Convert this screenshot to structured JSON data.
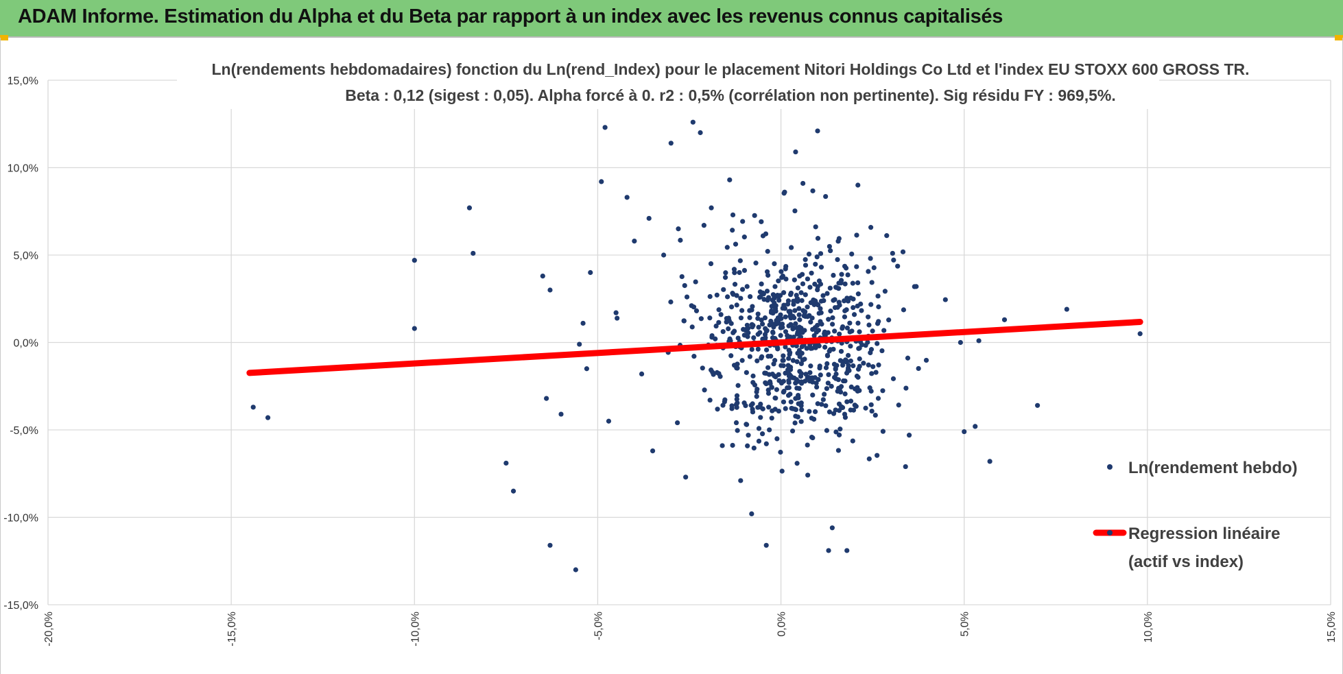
{
  "banner": {
    "title": "ADAM Informe. Estimation du Alpha et du Beta par rapport à un index avec les revenus connus capitalisés",
    "background": "#7fc97a"
  },
  "chart_data": {
    "type": "scatter",
    "title_lines": [
      "Ln(rendements hebdomadaires) fonction du Ln(rend_Index) pour le placement Nitori Holdings Co Ltd et l'index EU STOXX 600 GROSS TR.",
      "Beta : 0,12 (sigest : 0,05). Alpha forcé à 0. r2 : 0,5% (corrélation non pertinente). Sig résidu FY : 969,5%."
    ],
    "xlim": [
      -20,
      15
    ],
    "ylim": [
      -15,
      15
    ],
    "x_ticks": [
      -20,
      -15,
      -10,
      -5,
      0,
      5,
      10,
      15
    ],
    "y_ticks": [
      -15,
      10,
      5,
      0,
      -5,
      -10,
      15
    ],
    "x_tick_labels": [
      "-20,0%",
      "-15,0%",
      "-10,0%",
      "-5,0%",
      "0,0%",
      "5,0%",
      "10,0%",
      "15,0%"
    ],
    "y_tick_labels": [
      "-15,0%",
      "10,0%",
      "5,0%",
      "0,0%",
      "-5,0%",
      "-10,0%",
      "15,0%"
    ],
    "grid": true,
    "legend_position": "right",
    "series": [
      {
        "name": "Ln(rendement hebdo)",
        "kind": "scatter",
        "color": "#1f3a6e",
        "points": [
          [
            -14.4,
            -3.7
          ],
          [
            -14.0,
            -4.3
          ],
          [
            -10.0,
            4.7
          ],
          [
            -10.0,
            0.8
          ],
          [
            -8.5,
            7.7
          ],
          [
            -8.4,
            5.1
          ],
          [
            -7.5,
            -6.9
          ],
          [
            -7.3,
            -8.5
          ],
          [
            -6.5,
            3.8
          ],
          [
            -6.4,
            -3.2
          ],
          [
            -6.3,
            -11.6
          ],
          [
            -6.3,
            3.0
          ],
          [
            -6.0,
            -4.1
          ],
          [
            -5.5,
            -0.1
          ],
          [
            -5.4,
            1.1
          ],
          [
            -5.3,
            -1.5
          ],
          [
            -5.2,
            4.0
          ],
          [
            -5.6,
            -13.0
          ],
          [
            -4.9,
            9.2
          ],
          [
            -4.8,
            12.3
          ],
          [
            -4.7,
            -4.5
          ],
          [
            -4.5,
            1.7
          ],
          [
            -4.2,
            8.3
          ],
          [
            -4.0,
            5.8
          ],
          [
            -3.8,
            -1.8
          ],
          [
            -3.6,
            7.1
          ],
          [
            -3.5,
            -6.2
          ],
          [
            -3.2,
            5.0
          ],
          [
            -3.0,
            11.4
          ],
          [
            -2.8,
            6.5
          ],
          [
            -2.6,
            -7.7
          ],
          [
            -2.4,
            12.6
          ],
          [
            -2.2,
            12.0
          ],
          [
            -2.1,
            6.7
          ],
          [
            -1.9,
            7.7
          ],
          [
            -1.6,
            -5.9
          ],
          [
            -1.4,
            9.3
          ],
          [
            -1.1,
            -7.9
          ],
          [
            -0.8,
            -9.8
          ],
          [
            -0.4,
            -11.6
          ],
          [
            0.1,
            8.6
          ],
          [
            0.4,
            10.9
          ],
          [
            0.6,
            9.1
          ],
          [
            1.0,
            12.1
          ],
          [
            1.4,
            -10.6
          ],
          [
            1.3,
            -11.9
          ],
          [
            1.8,
            -11.9
          ],
          [
            2.1,
            9.0
          ],
          [
            3.5,
            -5.3
          ],
          [
            3.4,
            -7.1
          ],
          [
            4.9,
            0.0
          ],
          [
            5.0,
            -5.1
          ],
          [
            5.3,
            -4.8
          ],
          [
            5.4,
            0.1
          ],
          [
            5.7,
            -6.8
          ],
          [
            6.1,
            1.3
          ],
          [
            7.0,
            -3.6
          ],
          [
            7.8,
            1.9
          ],
          [
            9.8,
            0.5
          ]
        ],
        "cloud": {
          "n": 720,
          "x_mean": 0.4,
          "x_sd": 1.3,
          "y_mean": 0.2,
          "y_sd": 2.9
        }
      },
      {
        "name": "Regression linéaire (actif vs index)",
        "name_lines": [
          "Regression linéaire",
          "(actif vs index)"
        ],
        "kind": "line",
        "color": "#ff0000",
        "beta": 0.12,
        "alpha": 0,
        "x_range": [
          -14.5,
          9.8
        ]
      }
    ]
  }
}
